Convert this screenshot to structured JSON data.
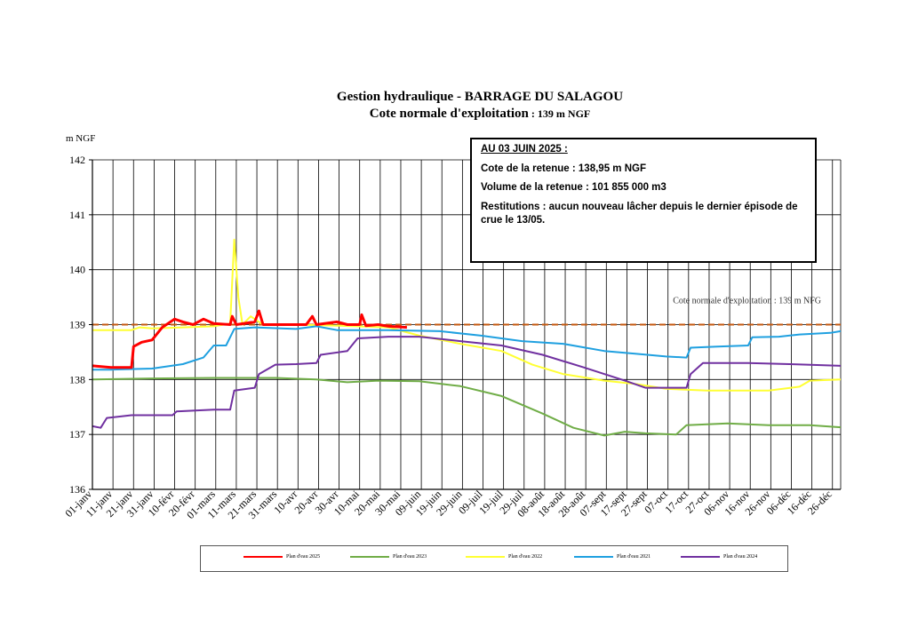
{
  "header": {
    "title": "Gestion hydraulique - BARRAGE DU SALAGOU",
    "subtitle_main": "Cote normale d'exploitation",
    "subtitle_value": " : 139 m NGF"
  },
  "infobox": {
    "heading": "AU 03 JUIN 2025 :",
    "cote": "Cote de la retenue : 138,95 m NGF",
    "volume": "Volume de la retenue : 101 855 000 m3",
    "restitutions": "Restitutions : aucun nouveau lâcher depuis le dernier épisode de crue le 13/05."
  },
  "colors": {
    "2025": "#ff0000",
    "2023": "#70ad47",
    "2022": "#ffff33",
    "2021": "#1fa0e0",
    "2024": "#7030a0",
    "reference": "#c55a11"
  },
  "chart_data": {
    "type": "line",
    "title": "Gestion hydraulique - BARRAGE DU SALAGOU",
    "ylabel": "m NGF",
    "ylim": [
      136,
      142
    ],
    "yticks": [
      136,
      137,
      138,
      139,
      140,
      141,
      142
    ],
    "xlim": [
      1,
      365
    ],
    "grid": true,
    "legend_position": "bottom",
    "x_unit": "day-of-year",
    "xtick_labels": [
      "01-janv",
      "11-janv",
      "21-janv",
      "31-janv",
      "10-févr",
      "20-févr",
      "01-mars",
      "11-mars",
      "21-mars",
      "31-mars",
      "10-avr",
      "20-avr",
      "30-avr",
      "10-mai",
      "20-mai",
      "30-mai",
      "09-juin",
      "19-juin",
      "29-juin",
      "09-juil",
      "19-juil",
      "29-juil",
      "08-août",
      "18-août",
      "28-août",
      "07-sept",
      "17-sept",
      "27-sept",
      "07-oct",
      "17-oct",
      "27-oct",
      "06-nov",
      "16-nov",
      "26-nov",
      "06-déc",
      "16-déc",
      "26-déc"
    ],
    "reference_line": {
      "value": 139,
      "label": "Cote normale d'exploitation : 139 m NFG"
    },
    "series": [
      {
        "name": "Plan d'eau 2025",
        "color": "#ff0000",
        "points": [
          [
            1,
            138.25
          ],
          [
            10,
            138.22
          ],
          [
            20,
            138.22
          ],
          [
            21,
            138.6
          ],
          [
            25,
            138.68
          ],
          [
            30,
            138.72
          ],
          [
            35,
            138.95
          ],
          [
            41,
            139.1
          ],
          [
            45,
            139.05
          ],
          [
            50,
            139.0
          ],
          [
            55,
            139.1
          ],
          [
            60,
            139.02
          ],
          [
            68,
            139.0
          ],
          [
            69,
            139.15
          ],
          [
            71,
            139.0
          ],
          [
            80,
            139.05
          ],
          [
            82,
            139.25
          ],
          [
            84,
            139.0
          ],
          [
            95,
            139.0
          ],
          [
            105,
            139.0
          ],
          [
            108,
            139.15
          ],
          [
            110,
            139.0
          ],
          [
            120,
            139.05
          ],
          [
            125,
            139.0
          ],
          [
            131,
            139.0
          ],
          [
            132,
            139.18
          ],
          [
            134,
            138.98
          ],
          [
            140,
            139.0
          ],
          [
            145,
            138.97
          ],
          [
            150,
            138.96
          ],
          [
            154,
            138.95
          ]
        ]
      },
      {
        "name": "Plan d'eau 2023",
        "color": "#70ad47",
        "points": [
          [
            1,
            138.0
          ],
          [
            30,
            138.02
          ],
          [
            60,
            138.03
          ],
          [
            90,
            138.03
          ],
          [
            110,
            138.0
          ],
          [
            125,
            137.95
          ],
          [
            140,
            137.98
          ],
          [
            160,
            137.97
          ],
          [
            180,
            137.88
          ],
          [
            200,
            137.7
          ],
          [
            220,
            137.38
          ],
          [
            235,
            137.12
          ],
          [
            250,
            136.98
          ],
          [
            260,
            137.05
          ],
          [
            270,
            137.02
          ],
          [
            285,
            137.0
          ],
          [
            290,
            137.17
          ],
          [
            310,
            137.2
          ],
          [
            330,
            137.17
          ],
          [
            350,
            137.17
          ],
          [
            365,
            137.13
          ]
        ]
      },
      {
        "name": "Plan d'eau 2022",
        "color": "#ffff33",
        "points": [
          [
            1,
            138.9
          ],
          [
            20,
            138.9
          ],
          [
            24,
            138.95
          ],
          [
            30,
            138.93
          ],
          [
            45,
            138.95
          ],
          [
            60,
            138.97
          ],
          [
            68,
            139.02
          ],
          [
            70,
            140.55
          ],
          [
            72,
            139.5
          ],
          [
            74,
            139.0
          ],
          [
            78,
            139.15
          ],
          [
            84,
            139.0
          ],
          [
            100,
            139.0
          ],
          [
            120,
            138.98
          ],
          [
            145,
            138.95
          ],
          [
            160,
            138.8
          ],
          [
            180,
            138.65
          ],
          [
            200,
            138.52
          ],
          [
            215,
            138.27
          ],
          [
            230,
            138.1
          ],
          [
            250,
            137.98
          ],
          [
            265,
            137.92
          ],
          [
            280,
            137.83
          ],
          [
            300,
            137.8
          ],
          [
            330,
            137.8
          ],
          [
            345,
            137.87
          ],
          [
            350,
            137.98
          ],
          [
            365,
            138.0
          ]
        ]
      },
      {
        "name": "Plan d'eau 2021",
        "color": "#1fa0e0",
        "points": [
          [
            1,
            138.18
          ],
          [
            10,
            138.18
          ],
          [
            30,
            138.2
          ],
          [
            45,
            138.28
          ],
          [
            55,
            138.4
          ],
          [
            60,
            138.62
          ],
          [
            66,
            138.62
          ],
          [
            70,
            138.92
          ],
          [
            80,
            138.95
          ],
          [
            100,
            138.92
          ],
          [
            110,
            138.97
          ],
          [
            120,
            138.9
          ],
          [
            145,
            138.9
          ],
          [
            170,
            138.88
          ],
          [
            190,
            138.8
          ],
          [
            210,
            138.7
          ],
          [
            230,
            138.65
          ],
          [
            250,
            138.52
          ],
          [
            265,
            138.47
          ],
          [
            280,
            138.42
          ],
          [
            290,
            138.4
          ],
          [
            292,
            138.58
          ],
          [
            305,
            138.6
          ],
          [
            320,
            138.62
          ],
          [
            322,
            138.77
          ],
          [
            335,
            138.78
          ],
          [
            345,
            138.82
          ],
          [
            360,
            138.85
          ],
          [
            365,
            138.88
          ]
        ]
      },
      {
        "name": "Plan d'eau 2024",
        "color": "#7030a0",
        "points": [
          [
            1,
            137.15
          ],
          [
            5,
            137.12
          ],
          [
            8,
            137.3
          ],
          [
            20,
            137.35
          ],
          [
            40,
            137.35
          ],
          [
            42,
            137.42
          ],
          [
            60,
            137.45
          ],
          [
            68,
            137.45
          ],
          [
            70,
            137.8
          ],
          [
            80,
            137.85
          ],
          [
            82,
            138.1
          ],
          [
            90,
            138.27
          ],
          [
            100,
            138.28
          ],
          [
            110,
            138.3
          ],
          [
            112,
            138.45
          ],
          [
            125,
            138.52
          ],
          [
            130,
            138.75
          ],
          [
            145,
            138.78
          ],
          [
            160,
            138.78
          ],
          [
            180,
            138.7
          ],
          [
            200,
            138.62
          ],
          [
            220,
            138.45
          ],
          [
            240,
            138.22
          ],
          [
            260,
            137.98
          ],
          [
            270,
            137.85
          ],
          [
            290,
            137.85
          ],
          [
            292,
            138.1
          ],
          [
            298,
            138.3
          ],
          [
            320,
            138.3
          ],
          [
            340,
            138.28
          ],
          [
            365,
            138.25
          ]
        ]
      }
    ]
  }
}
